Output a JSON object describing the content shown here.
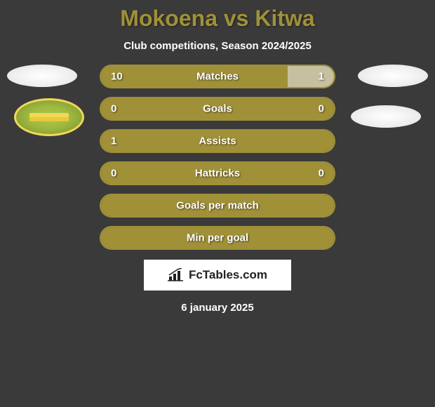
{
  "title": "Mokoena vs Kitwa",
  "subtitle": "Club competitions, Season 2024/2025",
  "colors": {
    "background": "#3a3a3a",
    "accent": "#a09038",
    "bar_right": "#c7c0a0",
    "text": "#ffffff"
  },
  "stats": [
    {
      "label": "Matches",
      "left_val": "10",
      "right_val": "1",
      "left_pct": 80,
      "right_pct": 20,
      "show_vals": true
    },
    {
      "label": "Goals",
      "left_val": "0",
      "right_val": "0",
      "left_pct": 100,
      "right_pct": 0,
      "show_vals": true
    },
    {
      "label": "Assists",
      "left_val": "1",
      "right_val": "",
      "left_pct": 100,
      "right_pct": 0,
      "show_vals": true
    },
    {
      "label": "Hattricks",
      "left_val": "0",
      "right_val": "0",
      "left_pct": 100,
      "right_pct": 0,
      "show_vals": true
    },
    {
      "label": "Goals per match",
      "left_val": "",
      "right_val": "",
      "left_pct": 100,
      "right_pct": 0,
      "show_vals": false
    },
    {
      "label": "Min per goal",
      "left_val": "",
      "right_val": "",
      "left_pct": 100,
      "right_pct": 0,
      "show_vals": false
    }
  ],
  "footer": {
    "brand": "FcTables.com",
    "date": "6 january 2025"
  }
}
